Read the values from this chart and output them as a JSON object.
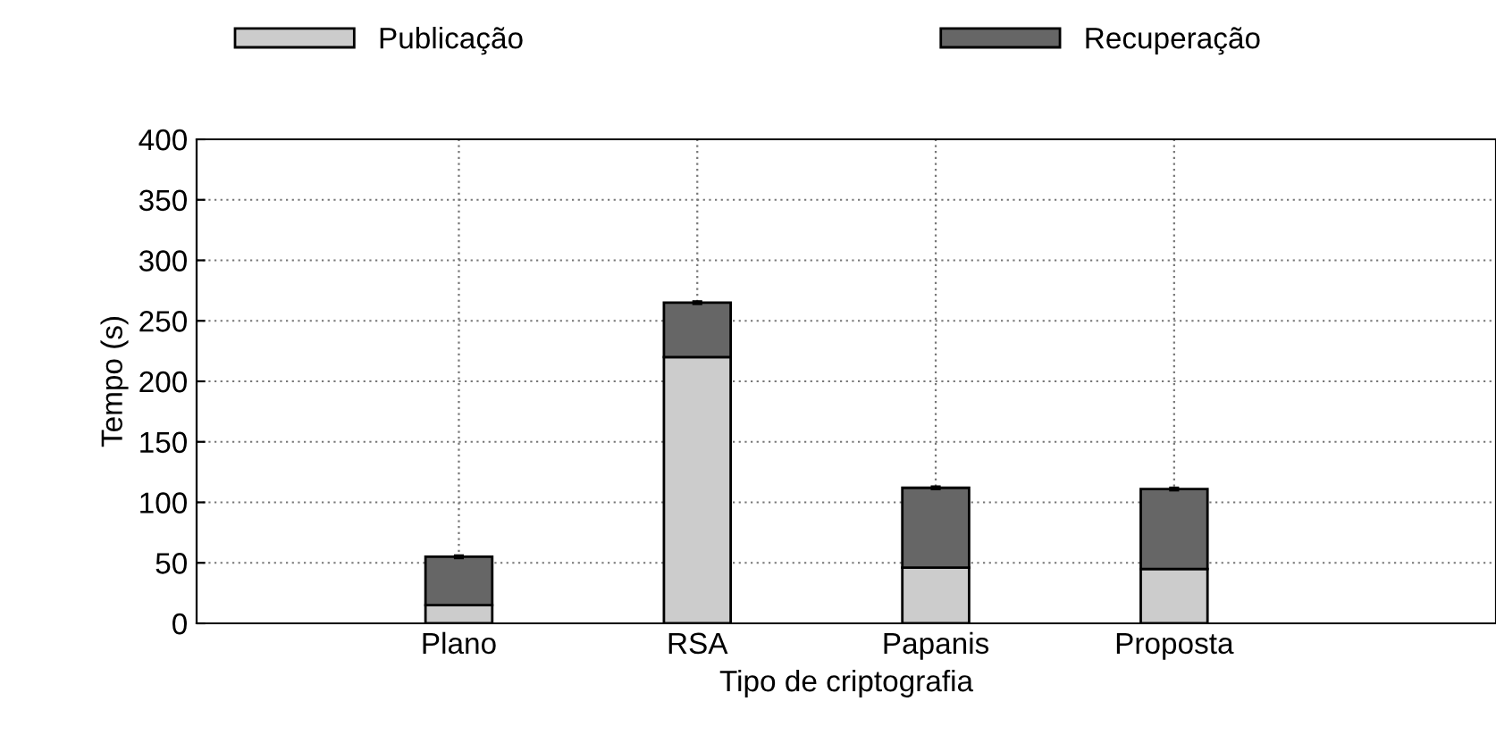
{
  "chart_data": {
    "type": "bar",
    "stacked": true,
    "xlabel": "Tipo de criptografia",
    "ylabel": "Tempo (s)",
    "categories": [
      "Plano",
      "RSA",
      "Papanis",
      "Proposta"
    ],
    "series": [
      {
        "name": "Publicação",
        "color": "#cccccc",
        "values": [
          15,
          220,
          46,
          45
        ]
      },
      {
        "name": "Recuperação",
        "color": "#666666",
        "values": [
          40,
          45,
          66,
          66
        ],
        "errors": [
          1,
          1,
          1,
          1
        ]
      }
    ],
    "ylim": [
      0,
      400
    ],
    "yticks": [
      0,
      50,
      100,
      150,
      200,
      250,
      300,
      350,
      400
    ],
    "grid": true,
    "legend": "top"
  }
}
